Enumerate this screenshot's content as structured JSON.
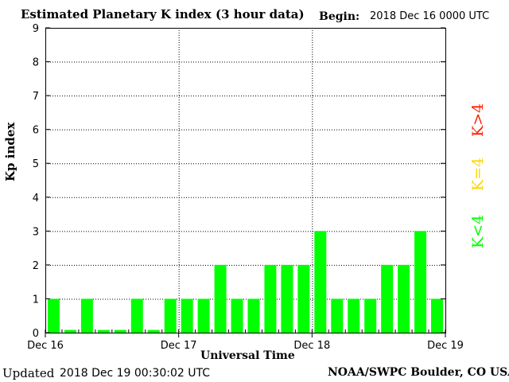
{
  "header": {
    "begin_label": "Begin:",
    "begin_value": "2018 Dec 16 0000 UTC"
  },
  "footer": {
    "updated_label": "Updated",
    "updated_value": "2018 Dec 19 00:30:02 UTC",
    "credit": "NOAA/SWPC Boulder, CO USA"
  },
  "legend": {
    "high": "K>4",
    "equal": "K=4",
    "low": "K<4"
  },
  "colors": {
    "bar_low": "#00ff00",
    "bar_equal": "#ffd700",
    "bar_high": "#ff2200",
    "axis": "#000000",
    "grid": "#000000"
  },
  "chart_data": {
    "type": "bar",
    "title": "Estimated Planetary K index (3 hour data)",
    "xlabel": "Universal Time",
    "ylabel": "Kp index",
    "ylim": [
      0,
      9
    ],
    "yticks": [
      "0",
      "1",
      "2",
      "3",
      "4",
      "5",
      "6",
      "7",
      "8",
      "9"
    ],
    "xticks": [
      "Dec 16",
      "Dec 17",
      "Dec 18",
      "Dec 19"
    ],
    "grid": true,
    "legend_position": "right",
    "values": [
      1,
      0,
      1,
      0,
      0,
      1,
      0,
      1,
      1,
      1,
      2,
      1,
      1,
      2,
      2,
      2,
      3,
      1,
      1,
      1,
      2,
      2,
      3,
      1
    ]
  }
}
